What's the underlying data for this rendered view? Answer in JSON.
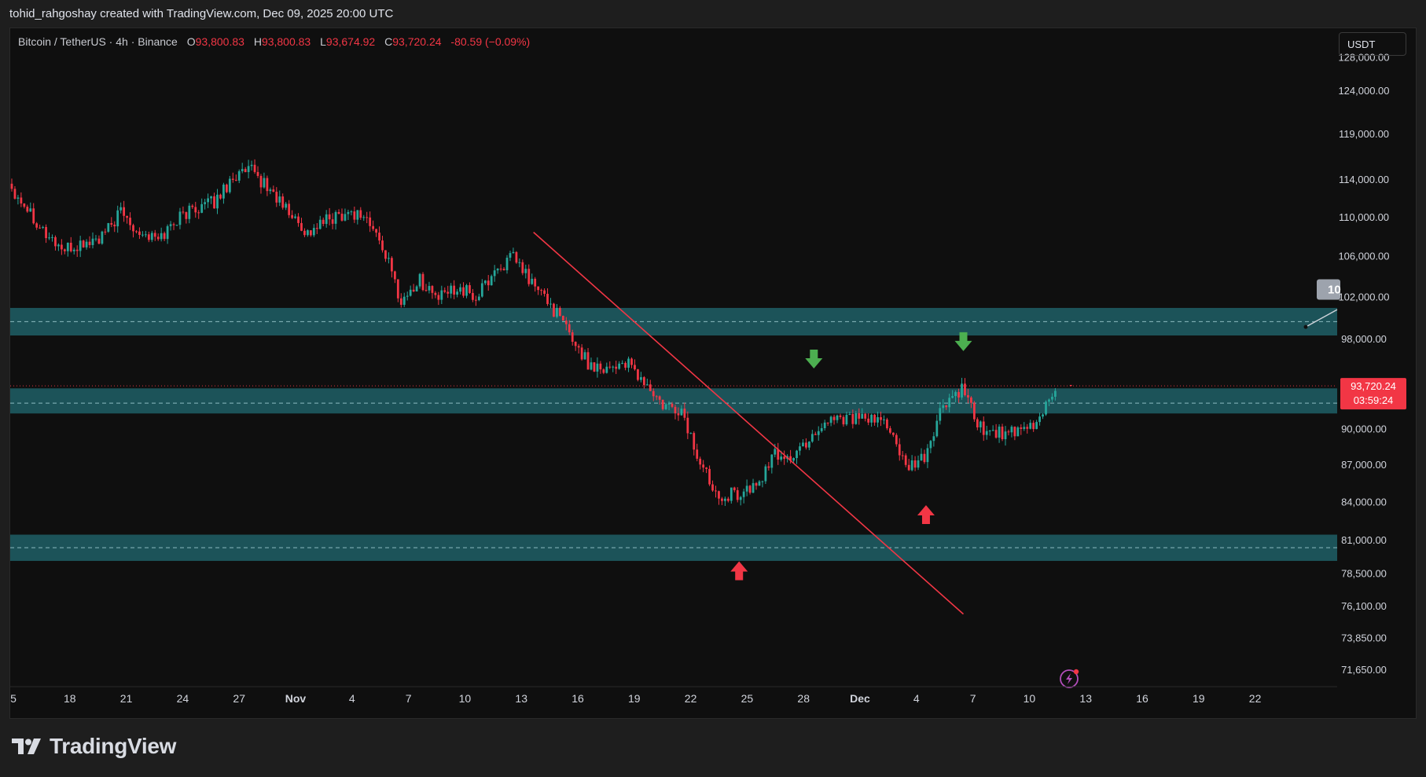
{
  "header": {
    "credit": "tohid_rahgoshay created with TradingView.com, Dec 09, 2025 20:00 UTC"
  },
  "legend": {
    "symbol": "Bitcoin / TetherUS · 4h · Binance",
    "open_label": "O",
    "open": "93,800.83",
    "high_label": "H",
    "high": "93,800.83",
    "low_label": "L",
    "low": "93,674.92",
    "close_label": "C",
    "close": "93,720.24",
    "change": "-80.59 (−0.09%)"
  },
  "currency_button": "USDT",
  "price_tag": {
    "price": "93,720.24",
    "countdown": "03:59:24",
    "color": "#f23645"
  },
  "price_scale_labels": [
    "128,000.00",
    "124,000.00",
    "119,000.00",
    "114,000.00",
    "110,000.00",
    "106,000.00",
    "102,000.00",
    "98,000.00",
    "90,000.00",
    "87,000.00",
    "84,000.00",
    "81,000.00",
    "78,500.00",
    "76,100.00",
    "73,850.00",
    "71,650.00"
  ],
  "time_axis_labels": [
    "5",
    "18",
    "21",
    "24",
    "27",
    "Nov",
    "4",
    "7",
    "10",
    "13",
    "16",
    "19",
    "22",
    "25",
    "28",
    "Dec",
    "4",
    "7",
    "10",
    "13",
    "16",
    "19",
    "22"
  ],
  "callout_label": "10",
  "branding": {
    "wordmark": "TradingView"
  },
  "colors": {
    "up": "#26a69a",
    "down": "#f23645",
    "zone": "#1f5f66",
    "trendline": "#f23645",
    "arrow_up": "#f23645",
    "arrow_down": "#4caf50"
  },
  "chart_data": {
    "type": "candlestick",
    "symbol": "BTCUSDT",
    "timeframe": "4h",
    "y_scale": "log",
    "ylim": [
      70800,
      131500
    ],
    "x_range": [
      "2025-10-14",
      "2025-12-24"
    ],
    "last": {
      "time": "2025-12-09 20:00",
      "open": 93800.83,
      "high": 93800.83,
      "low": 93674.92,
      "close": 93720.24,
      "change": -80.59,
      "change_pct": -0.09
    },
    "price_path": {
      "dates": [
        "2025-10-14",
        "2025-10-15",
        "2025-10-16",
        "2025-10-17",
        "2025-10-18",
        "2025-10-19",
        "2025-10-20",
        "2025-10-21",
        "2025-10-22",
        "2025-10-23",
        "2025-10-24",
        "2025-10-25",
        "2025-10-26",
        "2025-10-27",
        "2025-10-28",
        "2025-10-29",
        "2025-10-30",
        "2025-10-31",
        "2025-11-01",
        "2025-11-02",
        "2025-11-03",
        "2025-11-04",
        "2025-11-05",
        "2025-11-06",
        "2025-11-07",
        "2025-11-08",
        "2025-11-09",
        "2025-11-10",
        "2025-11-11",
        "2025-11-12",
        "2025-11-13",
        "2025-11-14",
        "2025-11-15",
        "2025-11-16",
        "2025-11-17",
        "2025-11-18",
        "2025-11-19",
        "2025-11-20",
        "2025-11-21",
        "2025-11-22",
        "2025-11-23",
        "2025-11-24",
        "2025-11-25",
        "2025-11-26",
        "2025-11-27",
        "2025-11-28",
        "2025-11-29",
        "2025-11-30",
        "2025-12-01",
        "2025-12-02",
        "2025-12-03",
        "2025-12-04",
        "2025-12-05",
        "2025-12-06",
        "2025-12-07",
        "2025-12-08",
        "2025-12-09"
      ],
      "close": [
        113500,
        111000,
        108200,
        106500,
        107200,
        107800,
        110500,
        108500,
        107600,
        109800,
        111000,
        111500,
        114300,
        114800,
        112800,
        110400,
        108300,
        109600,
        110500,
        110200,
        107000,
        101500,
        103600,
        101800,
        103000,
        101800,
        104500,
        105800,
        103300,
        101200,
        98500,
        95700,
        95400,
        95800,
        94000,
        91800,
        91500,
        87000,
        84600,
        84600,
        85200,
        87800,
        87600,
        89500,
        91000,
        91000,
        90600,
        90600,
        86500,
        87500,
        92000,
        93300,
        90000,
        89700,
        89500,
        90400,
        93720
      ]
    },
    "zones": [
      {
        "low": 98300,
        "high": 100900,
        "mid": 99600
      },
      {
        "low": 91300,
        "high": 93500,
        "mid": 92200
      },
      {
        "low": 79400,
        "high": 81400,
        "mid": 80400
      }
    ],
    "trendline": {
      "start": {
        "date": "2025-11-11",
        "price": 108400
      },
      "end": {
        "date": "2025-12-04",
        "price": 75500
      }
    },
    "markers": [
      {
        "type": "arrow_up",
        "date": "2025-11-22",
        "price": 78600
      },
      {
        "type": "arrow_down",
        "date": "2025-11-26",
        "price": 96200
      },
      {
        "type": "arrow_up",
        "date": "2025-12-02",
        "price": 82900
      },
      {
        "type": "arrow_down",
        "date": "2025-12-04",
        "price": 97800
      }
    ]
  }
}
